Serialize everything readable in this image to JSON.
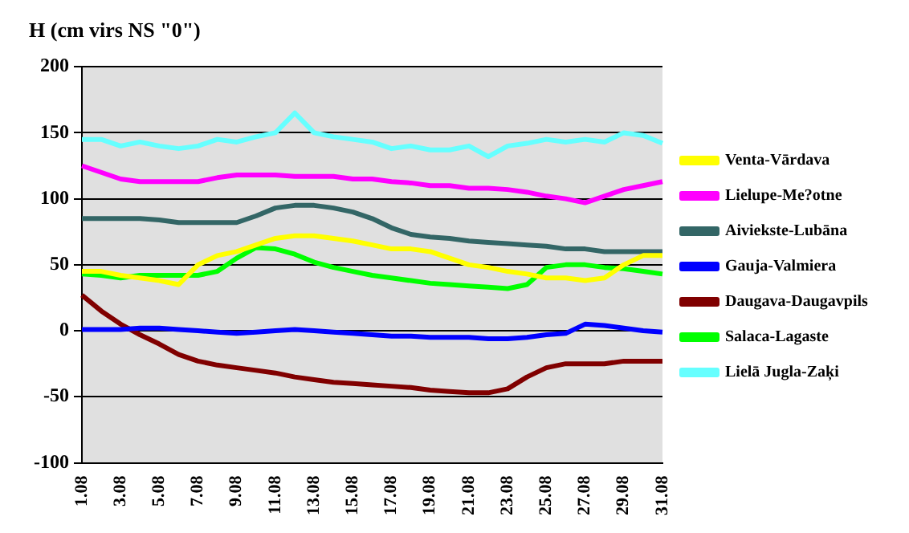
{
  "chart_data": {
    "type": "line",
    "title": "H (cm virs NS \"0\")",
    "categories": [
      "1.08",
      null,
      "3.08",
      null,
      "5.08",
      null,
      "7.08",
      null,
      "9.08",
      null,
      "11.08",
      null,
      "13.08",
      null,
      "15.08",
      null,
      "17.08",
      null,
      "19.08",
      null,
      "21.08",
      null,
      "23.08",
      null,
      "25.08",
      null,
      "27.08",
      null,
      "29.08",
      null,
      "31.08"
    ],
    "series": [
      {
        "name": "Venta-Vārdava",
        "color": "#ffff00",
        "values": [
          45,
          45,
          42,
          40,
          38,
          35,
          50,
          57,
          60,
          65,
          70,
          72,
          72,
          70,
          68,
          65,
          62,
          62,
          60,
          55,
          50,
          48,
          45,
          43,
          40,
          40,
          38,
          40,
          50,
          57,
          57
        ]
      },
      {
        "name": "Lielupe-Me?otne",
        "color": "#ff00ff",
        "values": [
          125,
          120,
          115,
          113,
          113,
          113,
          113,
          116,
          118,
          118,
          118,
          117,
          117,
          117,
          115,
          115,
          113,
          112,
          110,
          110,
          108,
          108,
          107,
          105,
          102,
          100,
          97,
          102,
          107,
          110,
          113
        ]
      },
      {
        "name": "Aiviekste-Lubāna",
        "color": "#336666",
        "values": [
          85,
          85,
          85,
          85,
          84,
          82,
          82,
          82,
          82,
          87,
          93,
          95,
          95,
          93,
          90,
          85,
          78,
          73,
          71,
          70,
          68,
          67,
          66,
          65,
          64,
          62,
          62,
          60,
          60,
          60,
          60
        ]
      },
      {
        "name": "Gauja-Valmiera",
        "color": "#0000ff",
        "values": [
          1,
          1,
          1,
          2,
          2,
          1,
          0,
          -1,
          -2,
          -1,
          0,
          1,
          0,
          -1,
          -2,
          -3,
          -4,
          -4,
          -5,
          -5,
          -5,
          -6,
          -6,
          -5,
          -3,
          -2,
          5,
          4,
          2,
          0,
          -1
        ]
      },
      {
        "name": "Daugava-Daugavpils",
        "color": "#800000",
        "values": [
          27,
          15,
          5,
          -3,
          -10,
          -18,
          -23,
          -26,
          -28,
          -30,
          -32,
          -35,
          -37,
          -39,
          -40,
          -41,
          -42,
          -43,
          -45,
          -46,
          -47,
          -47,
          -44,
          -35,
          -28,
          -25,
          -25,
          -25,
          -23,
          -23,
          -23
        ]
      },
      {
        "name": "Salaca-Lagaste",
        "color": "#00ff00",
        "values": [
          43,
          42,
          40,
          42,
          42,
          42,
          42,
          45,
          55,
          63,
          62,
          58,
          52,
          48,
          45,
          42,
          40,
          38,
          36,
          35,
          34,
          33,
          32,
          35,
          48,
          50,
          50,
          48,
          47,
          45,
          43
        ]
      },
      {
        "name": "Lielā Jugla-Zaķi",
        "color": "#66ffff",
        "values": [
          145,
          145,
          140,
          143,
          140,
          138,
          140,
          145,
          143,
          147,
          150,
          165,
          150,
          147,
          145,
          143,
          138,
          140,
          137,
          137,
          140,
          132,
          140,
          142,
          145,
          143,
          145,
          143,
          150,
          148,
          142
        ]
      }
    ],
    "ylim": [
      -100,
      200
    ],
    "yticks": [
      -100,
      -50,
      0,
      50,
      100,
      150,
      200
    ],
    "grid": "y",
    "legend": "right",
    "marker": "none",
    "line_style": "solid"
  }
}
